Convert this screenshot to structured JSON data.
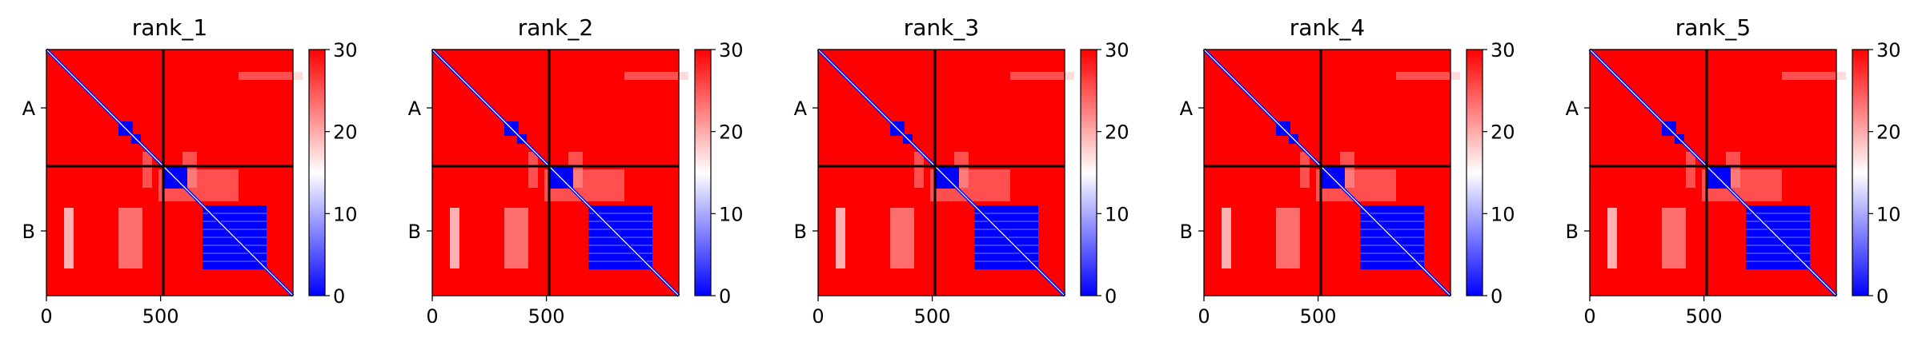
{
  "chart_data": [
    {
      "type": "heatmap",
      "title": "rank_1",
      "x_ticks": [
        "0",
        "500"
      ],
      "y_ticks": [
        "A",
        "B"
      ],
      "colorbar": {
        "ticks": [
          "0",
          "10",
          "20",
          "30"
        ],
        "range": [
          0,
          30
        ]
      }
    },
    {
      "type": "heatmap",
      "title": "rank_2",
      "x_ticks": [
        "0",
        "500"
      ],
      "y_ticks": [
        "A",
        "B"
      ],
      "colorbar": {
        "ticks": [
          "0",
          "10",
          "20",
          "30"
        ],
        "range": [
          0,
          30
        ]
      }
    },
    {
      "type": "heatmap",
      "title": "rank_3",
      "x_ticks": [
        "0",
        "500"
      ],
      "y_ticks": [
        "A",
        "B"
      ],
      "colorbar": {
        "ticks": [
          "0",
          "10",
          "20",
          "30"
        ],
        "range": [
          0,
          30
        ]
      }
    },
    {
      "type": "heatmap",
      "title": "rank_4",
      "x_ticks": [
        "0",
        "500"
      ],
      "y_ticks": [
        "A",
        "B"
      ],
      "colorbar": {
        "ticks": [
          "0",
          "10",
          "20",
          "30"
        ],
        "range": [
          0,
          30
        ]
      }
    },
    {
      "type": "heatmap",
      "title": "rank_5",
      "x_ticks": [
        "0",
        "500"
      ],
      "y_ticks": [
        "A",
        "B"
      ],
      "colorbar": {
        "ticks": [
          "0",
          "10",
          "20",
          "30"
        ],
        "range": [
          0,
          30
        ]
      }
    }
  ],
  "colors": {
    "high": "#ff0000",
    "mid": "#ffffff",
    "low": "#0000ff",
    "divider": "#000000"
  }
}
